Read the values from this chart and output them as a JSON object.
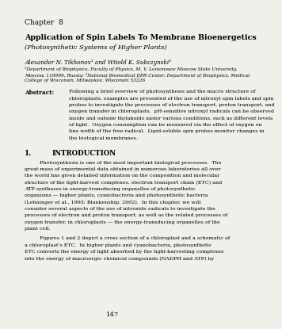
{
  "bg_color": "#f0efea",
  "chapter_label": "Chapter  8",
  "title_line1": "Application of Spin Labels To Membrane Bioenergetics",
  "title_line2": "(Photosynthetic Systems of Higher Plants)",
  "authors": "Alexander N. Tikhonov¹ and Witold K. Subczynski²",
  "affil1": "¹Department of Biophysics, Faculty of Physics, M. V. Lomonosov Moscow State University,",
  "affil2": "Moscow, 119999, Russia; ²National Biomedical EPR Center, Department of Biophysics, Medical",
  "affil3": "College of Wisconsin, Milwaukee, Wisconsin 53226",
  "abstract_label": "Abstract:",
  "abstract_lines": [
    "Following a brief overview of photosynthesis and the macro structure of",
    "chloroplasts, examples are presented of the use of nitroxyl spin labels and spin",
    "probes to investigate the processes of electron transport, proton transport, and",
    "oxygen transfer in chloroplasts.  pH-sensitive nitroxyl radicals can be observed",
    "inside and outside thylakoids under various conditions, such as different levels",
    "of light.  Oxygen consumption can be measured via the effect of oxygen on",
    "line width of the free radical.  Lipid-soluble spin probes monitor changes in",
    "the biological membranes."
  ],
  "section_num": "1.",
  "section_title": "INTRODUCTION",
  "para1_lines": [
    "Photosynthesis is one of the most important biological processes.  The",
    "great mass of experimental data obtained in numerous laboratories all over",
    "the world has given detailed information on the composition and molecular",
    "structure of the light-harvest complexes, electron transport chain (ETC) and",
    "ATP synthases in energy-transducing organelles of photosynthetic",
    "organisms — higher plants, cyanobacteria and photosynthetic bacteria",
    "(Lehninger et al., 1993; Blankenship, 2002).  In this chapter, we will",
    "consider several aspects of the use of nitroxide radicals to investigate the",
    "processes of electron and proton transport, as well as the related processes of",
    "oxygen transfer, in chloroplasts — the energy-transducing organelles of the",
    "plant cell."
  ],
  "para2_lines": [
    "Figures 1 and 2 depict a cross section of a chloroplast and a schematic of",
    "a chloroplast’s ETC.  In higher plants and cyanobacteria, photosynthetic",
    "ETC converts the energy of light absorbed by the light-harvesting complexes",
    "into the energy of macroergic chemical compounds (NADPH and ATP) by"
  ],
  "page_num": "147"
}
